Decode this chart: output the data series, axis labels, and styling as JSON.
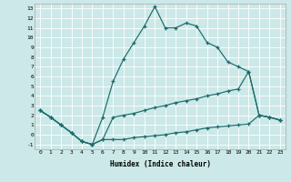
{
  "xlabel": "Humidex (Indice chaleur)",
  "bg_color": "#cce8e8",
  "line_color": "#1a6b6b",
  "grid_color": "#b8d8d8",
  "xlim": [
    -0.5,
    23.5
  ],
  "ylim": [
    -1.5,
    13.5
  ],
  "xticks": [
    0,
    1,
    2,
    3,
    4,
    5,
    6,
    7,
    8,
    9,
    10,
    11,
    12,
    13,
    14,
    15,
    16,
    17,
    18,
    19,
    20,
    21,
    22,
    23
  ],
  "yticks": [
    -1,
    0,
    1,
    2,
    3,
    4,
    5,
    6,
    7,
    8,
    9,
    10,
    11,
    12,
    13
  ],
  "line1_x": [
    0,
    1,
    2,
    3,
    4,
    5,
    6,
    7,
    8,
    9,
    10,
    11,
    12,
    13,
    14,
    15,
    16,
    17,
    18,
    19,
    20,
    21,
    22,
    23
  ],
  "line1_y": [
    2.5,
    1.8,
    1.0,
    0.2,
    -0.7,
    -1.0,
    1.8,
    5.5,
    7.8,
    9.5,
    11.2,
    13.2,
    11.0,
    11.0,
    11.5,
    11.2,
    9.5,
    9.0,
    7.5,
    7.0,
    6.5,
    2.0,
    1.8,
    1.5
  ],
  "line2_x": [
    0,
    1,
    2,
    3,
    4,
    5,
    6,
    7,
    8,
    9,
    10,
    11,
    12,
    13,
    14,
    15,
    16,
    17,
    18,
    19,
    20,
    21,
    22,
    23
  ],
  "line2_y": [
    2.5,
    1.8,
    1.0,
    0.2,
    -0.7,
    -1.0,
    -0.5,
    1.8,
    2.0,
    2.2,
    2.5,
    2.8,
    3.0,
    3.3,
    3.5,
    3.7,
    4.0,
    4.2,
    4.5,
    4.7,
    6.5,
    2.0,
    1.8,
    1.5
  ],
  "line3_x": [
    0,
    1,
    2,
    3,
    4,
    5,
    6,
    7,
    8,
    9,
    10,
    11,
    12,
    13,
    14,
    15,
    16,
    17,
    18,
    19,
    20,
    21,
    22,
    23
  ],
  "line3_y": [
    2.5,
    1.8,
    1.0,
    0.2,
    -0.7,
    -1.0,
    -0.5,
    -0.5,
    -0.5,
    -0.3,
    -0.2,
    -0.1,
    0.0,
    0.2,
    0.3,
    0.5,
    0.7,
    0.8,
    0.9,
    1.0,
    1.1,
    2.0,
    1.8,
    1.5
  ]
}
